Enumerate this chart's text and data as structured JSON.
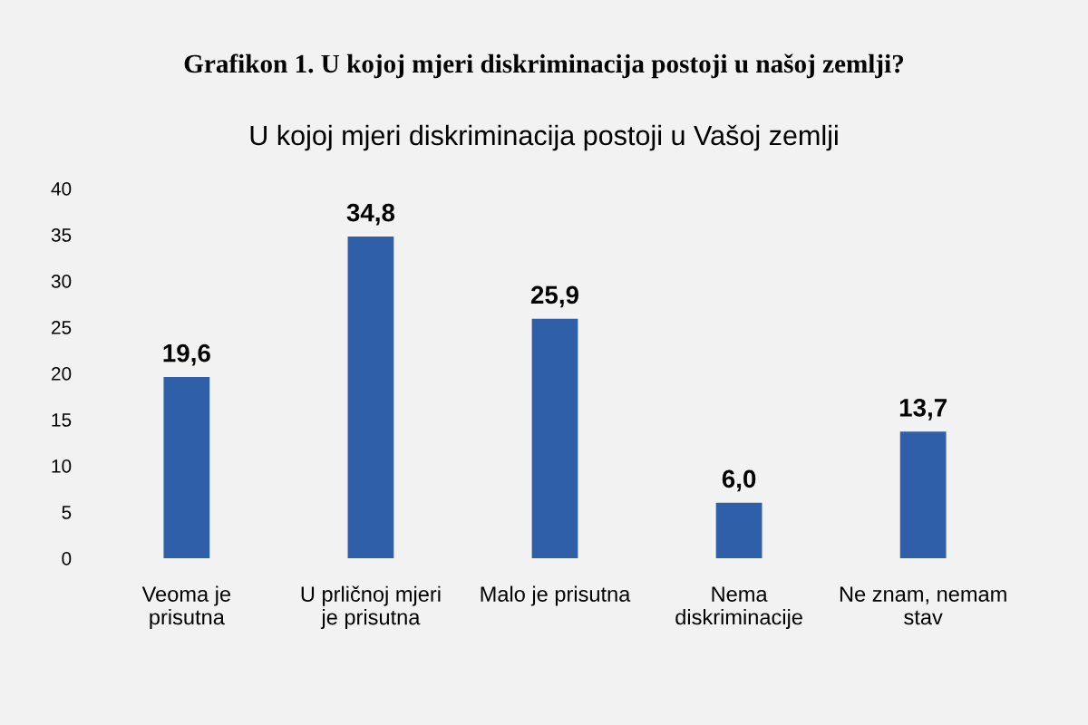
{
  "chart_data": {
    "type": "bar",
    "title": "Grafikon 1. U kojoj mjeri diskriminacija postoji u našoj zemlji?",
    "subtitle": "U kojoj mjeri diskriminacija postoji u Vašoj zemlji",
    "categories": [
      "Veoma je prisutna",
      "U prličnoj mjeri je prisutna",
      "Malo je prisutna",
      "Nema diskriminacije",
      "Ne znam, nemam stav"
    ],
    "values": [
      19.6,
      34.8,
      25.9,
      6.0,
      13.7
    ],
    "value_labels": [
      "19,6",
      "34,8",
      "25,9",
      "6,0",
      "13,7"
    ],
    "color": "#2e5fa8",
    "ylim": [
      0,
      40
    ],
    "yticks": [
      0,
      5,
      10,
      15,
      20,
      25,
      30,
      35,
      40
    ],
    "grid": false
  }
}
